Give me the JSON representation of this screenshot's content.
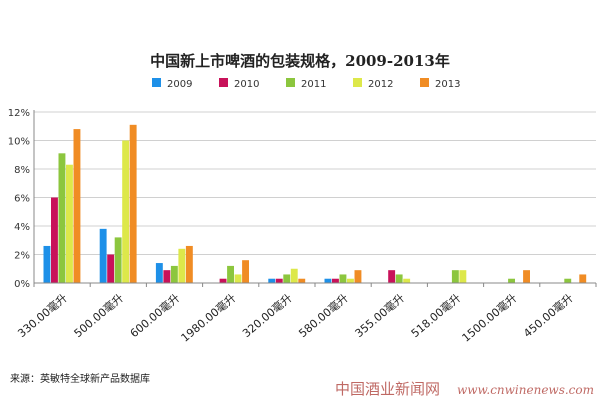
{
  "chart_data": {
    "type": "bar",
    "title": "中国新上市啤酒的包装规格，2009-2013年",
    "xlabel": "",
    "ylabel": "",
    "ylim": [
      0,
      12
    ],
    "yticks": [
      "0%",
      "2%",
      "4%",
      "6%",
      "8%",
      "10%",
      "12%"
    ],
    "grid": true,
    "legend_position": "top",
    "categories": [
      "330.00毫升",
      "500.00毫升",
      "600.00毫升",
      "1980.00毫升",
      "320.00毫升",
      "580.00毫升",
      "355.00毫升",
      "518.00毫升",
      "1500.00毫升",
      "450.00毫升"
    ],
    "series": [
      {
        "name": "2009",
        "color": "#1e90e8",
        "values": [
          2.6,
          3.8,
          1.4,
          0,
          0.3,
          0.3,
          0,
          0,
          0,
          0
        ]
      },
      {
        "name": "2010",
        "color": "#c8125a",
        "values": [
          6.0,
          2.0,
          0.9,
          0.3,
          0.3,
          0.3,
          0.9,
          0,
          0,
          0
        ]
      },
      {
        "name": "2011",
        "color": "#8cc63e",
        "values": [
          9.1,
          3.2,
          1.2,
          1.2,
          0.6,
          0.6,
          0.6,
          0.9,
          0.3,
          0.3
        ]
      },
      {
        "name": "2012",
        "color": "#dde84a",
        "values": [
          8.3,
          10.0,
          2.4,
          0.6,
          1.0,
          0.3,
          0.3,
          0.9,
          0,
          0
        ]
      },
      {
        "name": "2013",
        "color": "#f08c24",
        "values": [
          10.8,
          11.1,
          2.6,
          1.6,
          0.3,
          0.9,
          0,
          0,
          0.9,
          0.6
        ]
      }
    ],
    "source": "来源：英敏特全球新产品数据库"
  },
  "watermark": {
    "text": "中国酒业新闻网",
    "url": "www.cnwinenews.com"
  }
}
